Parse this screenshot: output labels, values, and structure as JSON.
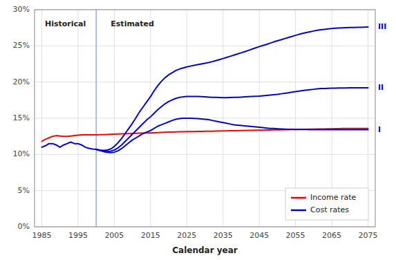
{
  "chart_data": {
    "type": "line",
    "x_label": "Calendar year",
    "xlim": [
      1983,
      2077
    ],
    "ylim": [
      0,
      30
    ],
    "xticks": [
      1985,
      1995,
      2005,
      2015,
      2025,
      2035,
      2045,
      2055,
      2065,
      2075
    ],
    "yticks": [
      {
        "value": 0,
        "label": "0%"
      },
      {
        "value": 5,
        "label": "5%"
      },
      {
        "value": 10,
        "label": "10%"
      },
      {
        "value": 15,
        "label": "15%"
      },
      {
        "value": 20,
        "label": "20%"
      },
      {
        "value": 25,
        "label": "25%"
      },
      {
        "value": 30,
        "label": "30%"
      }
    ],
    "grid": true,
    "legend": "lower right",
    "x_line": 2000,
    "annotations": [
      {
        "text": "Historical",
        "x": 1991.5,
        "y": 28.5
      },
      {
        "text": "Estimated",
        "x": 2010,
        "y": 28.5
      }
    ],
    "series": [
      {
        "name": "Income rate",
        "color": "#ff0000",
        "x": [
          1985,
          1986,
          1987,
          1988,
          1989,
          1990,
          1991,
          1992,
          1993,
          1994,
          1995,
          1996,
          1997,
          1998,
          1999,
          2000
        ],
        "values": [
          11.8,
          12.1,
          12.3,
          12.5,
          12.6,
          12.55,
          12.5,
          12.5,
          12.55,
          12.6,
          12.65,
          12.7,
          12.7,
          12.7,
          12.7,
          12.7
        ]
      },
      {
        "name": "Cost rates",
        "color": "#0000cc",
        "x": [
          1985,
          1986,
          1987,
          1988,
          1989,
          1990,
          1991,
          1992,
          1993,
          1994,
          1995,
          1996,
          1997,
          1998,
          1999,
          2000
        ],
        "values": [
          11.0,
          11.2,
          11.5,
          11.5,
          11.3,
          11.0,
          11.3,
          11.5,
          11.7,
          11.5,
          11.5,
          11.3,
          11.0,
          10.85,
          10.75,
          10.7
        ]
      },
      {
        "name": "Income rate",
        "color": "#ff0000",
        "x": [
          2000,
          2001,
          2002,
          2003,
          2004,
          2005,
          2006,
          2007,
          2008,
          2009,
          2010,
          2011,
          2012,
          2013,
          2014,
          2015,
          2016,
          2017,
          2018,
          2019,
          2020,
          2021,
          2022,
          2023,
          2024,
          2025,
          2026,
          2027,
          2028,
          2029,
          2030,
          2031,
          2032,
          2033,
          2034,
          2035,
          2036,
          2037,
          2038,
          2039,
          2040,
          2041,
          2042,
          2043,
          2044,
          2045,
          2046,
          2047,
          2048,
          2049,
          2050,
          2051,
          2052,
          2053,
          2054,
          2055,
          2056,
          2057,
          2058,
          2059,
          2060,
          2061,
          2062,
          2063,
          2064,
          2065,
          2066,
          2067,
          2068,
          2069,
          2070,
          2071,
          2072,
          2073,
          2074,
          2075
        ],
        "values": [
          12.7,
          12.72,
          12.74,
          12.76,
          12.78,
          12.8,
          12.82,
          12.84,
          12.86,
          12.88,
          12.9,
          12.92,
          12.94,
          12.95,
          12.97,
          12.98,
          13.0,
          13.02,
          13.04,
          13.06,
          13.08,
          13.1,
          13.12,
          13.13,
          13.14,
          13.15,
          13.16,
          13.17,
          13.18,
          13.19,
          13.2,
          13.21,
          13.22,
          13.23,
          13.24,
          13.25,
          13.26,
          13.27,
          13.28,
          13.29,
          13.3,
          13.31,
          13.32,
          13.33,
          13.34,
          13.35,
          13.36,
          13.37,
          13.38,
          13.39,
          13.4,
          13.41,
          13.42,
          13.43,
          13.44,
          13.45,
          13.46,
          13.47,
          13.48,
          13.49,
          13.5,
          13.51,
          13.52,
          13.53,
          13.54,
          13.55,
          13.56,
          13.57,
          13.58,
          13.59,
          13.6,
          13.6,
          13.6,
          13.6,
          13.6,
          13.6
        ]
      },
      {
        "name": "Cost rates",
        "color": "#0000cc",
        "label": "I",
        "x": [
          2000,
          2001,
          2002,
          2003,
          2004,
          2005,
          2006,
          2007,
          2008,
          2009,
          2010,
          2011,
          2012,
          2013,
          2014,
          2015,
          2016,
          2017,
          2018,
          2019,
          2020,
          2021,
          2022,
          2023,
          2024,
          2025,
          2026,
          2027,
          2028,
          2029,
          2030,
          2031,
          2032,
          2033,
          2034,
          2035,
          2036,
          2037,
          2038,
          2039,
          2040,
          2041,
          2042,
          2043,
          2044,
          2045,
          2046,
          2047,
          2048,
          2049,
          2050,
          2051,
          2052,
          2053,
          2054,
          2055,
          2056,
          2057,
          2058,
          2059,
          2060,
          2061,
          2062,
          2063,
          2064,
          2065,
          2066,
          2067,
          2068,
          2069,
          2070,
          2071,
          2072,
          2073,
          2074,
          2075
        ],
        "values": [
          10.7,
          10.55,
          10.4,
          10.3,
          10.25,
          10.3,
          10.5,
          10.8,
          11.2,
          11.6,
          12.0,
          12.3,
          12.6,
          12.9,
          13.1,
          13.3,
          13.6,
          13.9,
          14.1,
          14.3,
          14.5,
          14.7,
          14.85,
          14.95,
          15.0,
          15.0,
          15.0,
          14.98,
          14.95,
          14.9,
          14.85,
          14.8,
          14.7,
          14.6,
          14.5,
          14.4,
          14.3,
          14.2,
          14.1,
          14.05,
          14.0,
          13.95,
          13.9,
          13.85,
          13.8,
          13.75,
          13.7,
          13.65,
          13.6,
          13.58,
          13.55,
          13.52,
          13.5,
          13.48,
          13.46,
          13.45,
          13.45,
          13.44,
          13.44,
          13.43,
          13.43,
          13.43,
          13.42,
          13.42,
          13.42,
          13.42,
          13.42,
          13.42,
          13.42,
          13.42,
          13.42,
          13.42,
          13.42,
          13.42,
          13.42,
          13.42
        ]
      },
      {
        "name": "Cost rates",
        "color": "#0000cc",
        "label": "II",
        "x": [
          2000,
          2001,
          2002,
          2003,
          2004,
          2005,
          2006,
          2007,
          2008,
          2009,
          2010,
          2011,
          2012,
          2013,
          2014,
          2015,
          2016,
          2017,
          2018,
          2019,
          2020,
          2021,
          2022,
          2023,
          2024,
          2025,
          2026,
          2027,
          2028,
          2029,
          2030,
          2031,
          2032,
          2033,
          2034,
          2035,
          2036,
          2037,
          2038,
          2039,
          2040,
          2041,
          2042,
          2043,
          2044,
          2045,
          2046,
          2047,
          2048,
          2049,
          2050,
          2051,
          2052,
          2053,
          2054,
          2055,
          2056,
          2057,
          2058,
          2059,
          2060,
          2061,
          2062,
          2063,
          2064,
          2065,
          2066,
          2067,
          2068,
          2069,
          2070,
          2071,
          2072,
          2073,
          2074,
          2075
        ],
        "values": [
          10.7,
          10.55,
          10.45,
          10.4,
          10.45,
          10.6,
          10.9,
          11.3,
          11.8,
          12.3,
          12.8,
          13.3,
          13.8,
          14.3,
          14.8,
          15.2,
          15.7,
          16.2,
          16.6,
          17.0,
          17.3,
          17.55,
          17.75,
          17.88,
          17.95,
          18.0,
          18.0,
          18.0,
          18.0,
          17.98,
          17.95,
          17.92,
          17.9,
          17.88,
          17.86,
          17.85,
          17.85,
          17.86,
          17.88,
          17.9,
          17.92,
          17.95,
          17.98,
          18.0,
          18.03,
          18.05,
          18.1,
          18.15,
          18.2,
          18.25,
          18.3,
          18.38,
          18.45,
          18.52,
          18.6,
          18.68,
          18.75,
          18.83,
          18.9,
          18.95,
          19.0,
          19.05,
          19.1,
          19.12,
          19.14,
          19.15,
          19.16,
          19.17,
          19.18,
          19.19,
          19.2,
          19.2,
          19.2,
          19.2,
          19.2,
          19.2
        ]
      },
      {
        "name": "Cost rates",
        "color": "#0000cc",
        "label": "III",
        "x": [
          2000,
          2001,
          2002,
          2003,
          2004,
          2005,
          2006,
          2007,
          2008,
          2009,
          2010,
          2011,
          2012,
          2013,
          2014,
          2015,
          2016,
          2017,
          2018,
          2019,
          2020,
          2021,
          2022,
          2023,
          2024,
          2025,
          2026,
          2027,
          2028,
          2029,
          2030,
          2031,
          2032,
          2033,
          2034,
          2035,
          2036,
          2037,
          2038,
          2039,
          2040,
          2041,
          2042,
          2043,
          2044,
          2045,
          2046,
          2047,
          2048,
          2049,
          2050,
          2051,
          2052,
          2053,
          2054,
          2055,
          2056,
          2057,
          2058,
          2059,
          2060,
          2061,
          2062,
          2063,
          2064,
          2065,
          2066,
          2067,
          2068,
          2069,
          2070,
          2071,
          2072,
          2073,
          2074,
          2075
        ],
        "values": [
          10.7,
          10.6,
          10.55,
          10.6,
          10.75,
          11.1,
          11.6,
          12.2,
          12.9,
          13.6,
          14.3,
          15.1,
          15.9,
          16.6,
          17.3,
          18.0,
          18.8,
          19.5,
          20.1,
          20.6,
          21.0,
          21.3,
          21.6,
          21.8,
          21.95,
          22.1,
          22.2,
          22.3,
          22.4,
          22.5,
          22.6,
          22.7,
          22.82,
          22.95,
          23.1,
          23.25,
          23.4,
          23.56,
          23.72,
          23.88,
          24.04,
          24.2,
          24.38,
          24.55,
          24.72,
          24.9,
          25.05,
          25.2,
          25.38,
          25.55,
          25.7,
          25.85,
          26.0,
          26.15,
          26.3,
          26.45,
          26.6,
          26.72,
          26.85,
          26.95,
          27.05,
          27.15,
          27.22,
          27.28,
          27.34,
          27.4,
          27.44,
          27.47,
          27.5,
          27.52,
          27.54,
          27.55,
          27.56,
          27.57,
          27.58,
          27.6
        ]
      }
    ]
  }
}
